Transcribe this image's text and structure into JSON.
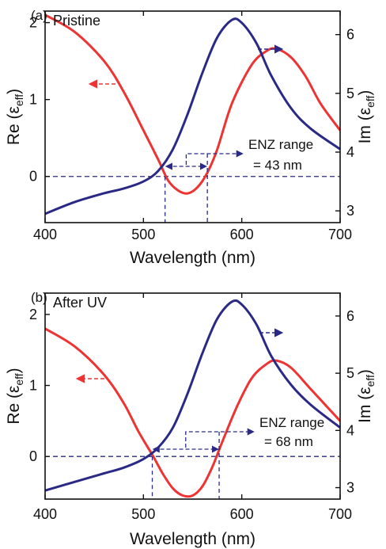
{
  "colors": {
    "re": "#ee3333",
    "im": "#2a2a86",
    "guide": "#2a2a86",
    "axis": "#111111"
  },
  "chart_data": [
    {
      "type": "line",
      "panel_label": "(a)",
      "title": "Pristine",
      "xlabel": "Wavelength (nm)",
      "ylabel_left_main": "Re (ε",
      "ylabel_left_sub": "eff",
      "ylabel_left_close": ")",
      "ylabel_right_main": "Im (ε",
      "ylabel_right_sub": "eff",
      "ylabel_right_close": ")",
      "xlim": [
        400,
        700
      ],
      "ylim_left": [
        -0.6,
        2.15
      ],
      "ylim_right": [
        2.8,
        6.4
      ],
      "xticks": [
        400,
        500,
        600,
        700
      ],
      "yticks_left": [
        0,
        1,
        2
      ],
      "yticks_right": [
        3,
        4,
        5,
        6
      ],
      "enz_lines": [
        "ENZ range",
        "= 43 nm"
      ],
      "enz_range_nm": [
        522,
        565
      ],
      "series": [
        {
          "axis": "left",
          "x": [
            400,
            430,
            460,
            480,
            500,
            515,
            525,
            535,
            545,
            555,
            565,
            575,
            590,
            610,
            625,
            635,
            650,
            665,
            680,
            700
          ],
          "values": [
            2.1,
            1.88,
            1.5,
            1.1,
            0.6,
            0.22,
            -0.05,
            -0.18,
            -0.22,
            -0.14,
            0.05,
            0.35,
            0.95,
            1.45,
            1.63,
            1.66,
            1.55,
            1.3,
            0.95,
            0.6
          ]
        },
        {
          "axis": "right",
          "x": [
            400,
            430,
            460,
            480,
            500,
            515,
            530,
            545,
            560,
            575,
            590,
            600,
            615,
            630,
            650,
            670,
            700
          ],
          "values": [
            2.95,
            3.15,
            3.3,
            3.38,
            3.5,
            3.68,
            4.05,
            4.65,
            5.35,
            5.95,
            6.25,
            6.2,
            5.85,
            5.3,
            4.75,
            4.4,
            4.05
          ]
        }
      ]
    },
    {
      "type": "line",
      "panel_label": "(b)",
      "title": "After UV",
      "xlabel": "Wavelength (nm)",
      "ylabel_left_main": "Re (ε",
      "ylabel_left_sub": "eff",
      "ylabel_left_close": ")",
      "ylabel_right_main": "Im (ε",
      "ylabel_right_sub": "eff",
      "ylabel_right_close": ")",
      "xlim": [
        400,
        700
      ],
      "ylim_left": [
        -0.6,
        2.3
      ],
      "ylim_right": [
        2.8,
        6.4
      ],
      "xticks": [
        400,
        500,
        600,
        700
      ],
      "yticks_left": [
        0,
        1,
        2
      ],
      "yticks_right": [
        3,
        4,
        5,
        6
      ],
      "enz_lines": [
        "ENZ range",
        "= 68 nm"
      ],
      "enz_range_nm": [
        509,
        577
      ],
      "series": [
        {
          "axis": "left",
          "x": [
            400,
            430,
            460,
            480,
            495,
            510,
            520,
            530,
            540,
            550,
            560,
            570,
            580,
            595,
            610,
            625,
            635,
            650,
            670,
            700
          ],
          "values": [
            1.8,
            1.55,
            1.15,
            0.75,
            0.35,
            0.0,
            -0.25,
            -0.45,
            -0.55,
            -0.55,
            -0.42,
            -0.15,
            0.2,
            0.7,
            1.1,
            1.3,
            1.35,
            1.25,
            0.95,
            0.5
          ]
        },
        {
          "axis": "right",
          "x": [
            400,
            430,
            460,
            480,
            500,
            515,
            530,
            545,
            560,
            575,
            590,
            600,
            615,
            630,
            650,
            670,
            700
          ],
          "values": [
            2.95,
            3.1,
            3.25,
            3.35,
            3.5,
            3.7,
            4.05,
            4.65,
            5.35,
            5.95,
            6.25,
            6.2,
            5.85,
            5.3,
            4.8,
            4.45,
            4.05
          ]
        }
      ]
    }
  ]
}
